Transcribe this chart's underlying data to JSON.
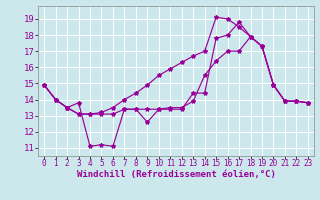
{
  "background_color": "#cce8ec",
  "grid_color": "#ffffff",
  "line_color": "#990099",
  "xlabel": "Windchill (Refroidissement éolien,°C)",
  "xlabel_fontsize": 6.5,
  "ytick_fontsize": 6.5,
  "xtick_fontsize": 5.5,
  "ylim": [
    10.5,
    19.8
  ],
  "xlim": [
    -0.5,
    23.5
  ],
  "yticks": [
    11,
    12,
    13,
    14,
    15,
    16,
    17,
    18,
    19
  ],
  "xticks": [
    0,
    1,
    2,
    3,
    4,
    5,
    6,
    7,
    8,
    9,
    10,
    11,
    12,
    13,
    14,
    15,
    16,
    17,
    18,
    19,
    20,
    21,
    22,
    23
  ],
  "line1_x": [
    0,
    1,
    2,
    3,
    4,
    5,
    6,
    7,
    8,
    9,
    10,
    11,
    12,
    13,
    14,
    15,
    16,
    17,
    18,
    19,
    20,
    21,
    22,
    23
  ],
  "line1_y": [
    14.9,
    14.0,
    13.5,
    13.8,
    11.1,
    11.2,
    11.1,
    13.4,
    13.4,
    12.6,
    13.4,
    13.4,
    13.4,
    14.4,
    14.4,
    17.8,
    18.0,
    18.8,
    17.9,
    17.3,
    14.9,
    13.9,
    13.9,
    13.8
  ],
  "line2_x": [
    0,
    1,
    2,
    3,
    4,
    5,
    6,
    7,
    8,
    9,
    10,
    11,
    12,
    13,
    14,
    15,
    16,
    17,
    18,
    19,
    20,
    21,
    22,
    23
  ],
  "line2_y": [
    14.9,
    14.0,
    13.5,
    13.1,
    13.1,
    13.1,
    13.1,
    13.4,
    13.4,
    13.4,
    13.4,
    13.5,
    13.5,
    13.9,
    15.5,
    16.4,
    17.0,
    17.0,
    17.9,
    17.3,
    14.9,
    13.9,
    13.9,
    13.8
  ],
  "line3_x": [
    0,
    1,
    2,
    3,
    4,
    5,
    6,
    7,
    8,
    9,
    10,
    11,
    12,
    13,
    14,
    15,
    16,
    17,
    18,
    19,
    20,
    21,
    22,
    23
  ],
  "line3_y": [
    14.9,
    14.0,
    13.5,
    13.1,
    13.1,
    13.2,
    13.5,
    14.0,
    14.4,
    14.9,
    15.5,
    15.9,
    16.3,
    16.7,
    17.0,
    19.1,
    19.0,
    18.5,
    17.9,
    17.3,
    14.9,
    13.9,
    13.9,
    13.8
  ]
}
